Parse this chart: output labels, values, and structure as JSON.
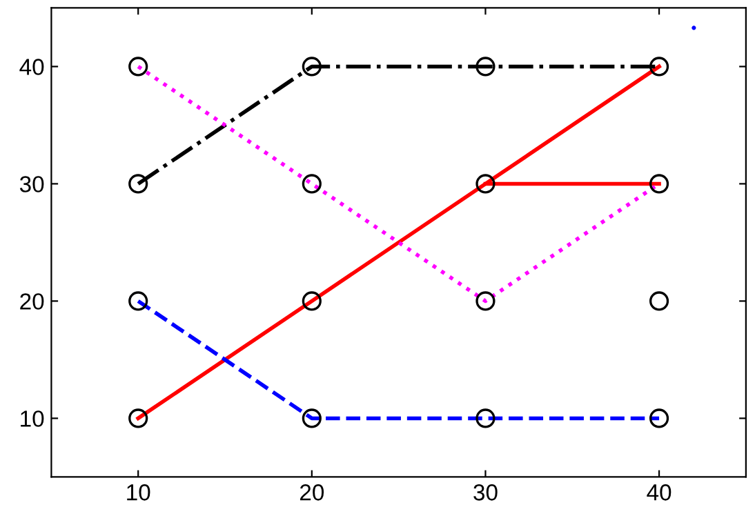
{
  "chart_data": {
    "type": "line",
    "xlim": [
      5,
      45
    ],
    "ylim": [
      5,
      45
    ],
    "xticks": [
      10,
      20,
      30,
      40
    ],
    "yticks": [
      10,
      20,
      30,
      40
    ],
    "grid": false,
    "legend": false,
    "series": [
      {
        "color": "#ff0000",
        "line_style": "solid",
        "marker": "none",
        "x": [
          10,
          20,
          30,
          40
        ],
        "values": [
          10,
          20,
          30,
          40
        ]
      },
      {
        "color": "#ff0000",
        "line_style": "solid",
        "marker": "none",
        "x": [
          30,
          40
        ],
        "values": [
          30,
          30
        ]
      },
      {
        "color": "#0000ff",
        "line_style": "dashed",
        "marker": "none",
        "x": [
          10,
          20,
          30,
          40
        ],
        "values": [
          20,
          10,
          10,
          10
        ]
      },
      {
        "color": "#000000",
        "line_style": "dashdot",
        "marker": "none",
        "x": [
          10,
          20,
          30,
          40
        ],
        "values": [
          30,
          40,
          40,
          40
        ]
      },
      {
        "color": "#ff00ff",
        "line_style": "dotted",
        "marker": "none",
        "x": [
          10,
          20,
          30,
          40
        ],
        "values": [
          40,
          30,
          20,
          30
        ]
      },
      {
        "type": "scatter",
        "color": "#000000",
        "marker": "circle",
        "x": [
          10,
          10,
          10,
          10,
          20,
          20,
          20,
          20,
          30,
          30,
          30,
          30,
          40,
          40,
          40,
          40
        ],
        "values": [
          10,
          20,
          30,
          40,
          10,
          20,
          30,
          40,
          10,
          20,
          30,
          40,
          10,
          20,
          30,
          40
        ]
      },
      {
        "type": "scatter",
        "color": "#0000ff",
        "marker": "point",
        "x": [
          42
        ],
        "values": [
          43.3
        ]
      }
    ]
  }
}
